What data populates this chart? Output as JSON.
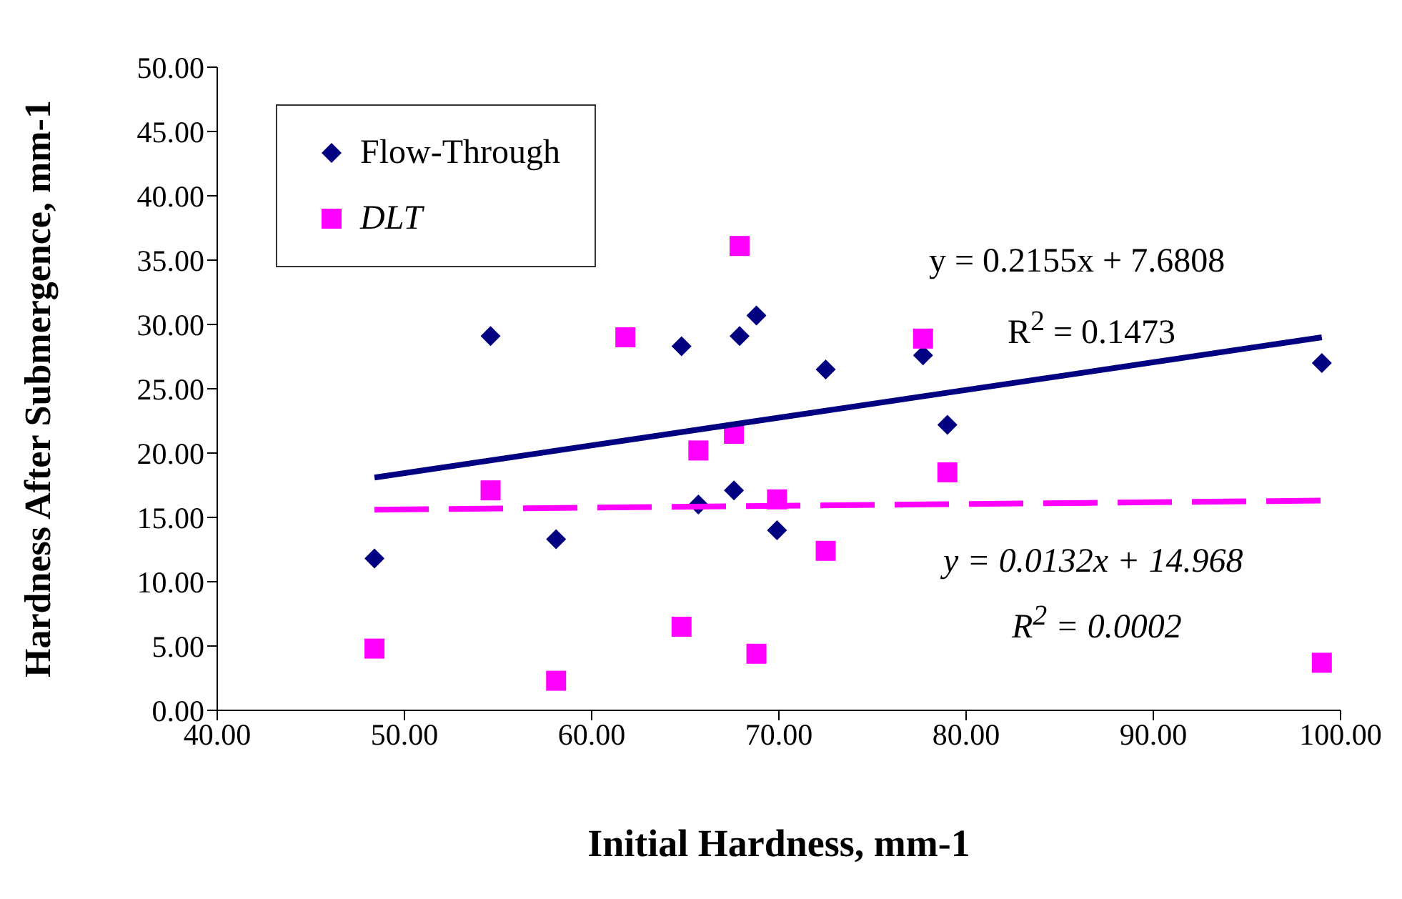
{
  "chart_data": {
    "type": "scatter",
    "xlabel": "Initial Hardness, mm-1",
    "ylabel": "Hardness After Submergence, mm-1",
    "xlim": [
      40,
      100
    ],
    "ylim": [
      0,
      50
    ],
    "xticks": [
      {
        "value": 40,
        "label": "40.00"
      },
      {
        "value": 50,
        "label": "50.00"
      },
      {
        "value": 60,
        "label": "60.00"
      },
      {
        "value": 70,
        "label": "70.00"
      },
      {
        "value": 80,
        "label": "80.00"
      },
      {
        "value": 90,
        "label": "90.00"
      },
      {
        "value": 100,
        "label": "100.00"
      }
    ],
    "yticks": [
      {
        "value": 0,
        "label": "0.00"
      },
      {
        "value": 5,
        "label": "5.00"
      },
      {
        "value": 10,
        "label": "10.00"
      },
      {
        "value": 15,
        "label": "15.00"
      },
      {
        "value": 20,
        "label": "20.00"
      },
      {
        "value": 25,
        "label": "25.00"
      },
      {
        "value": 30,
        "label": "30.00"
      },
      {
        "value": 35,
        "label": "35.00"
      },
      {
        "value": 40,
        "label": "40.00"
      },
      {
        "value": 45,
        "label": "45.00"
      },
      {
        "value": 50,
        "label": "50.00"
      }
    ],
    "grid": false,
    "legend": "top left",
    "series": [
      {
        "name": "Flow-Through",
        "color": "#000080",
        "marker": "diamond",
        "x": [
          48.4,
          54.6,
          58.1,
          64.8,
          65.7,
          67.6,
          67.9,
          68.8,
          69.9,
          72.5,
          77.7,
          79.0,
          99.0
        ],
        "values": [
          11.8,
          29.1,
          13.3,
          28.3,
          16.0,
          17.1,
          29.1,
          30.7,
          14.0,
          26.5,
          27.6,
          22.2,
          27.0
        ]
      },
      {
        "name": "DLT",
        "color": "#ff00ff",
        "marker": "square",
        "x": [
          48.4,
          54.6,
          58.1,
          61.8,
          64.8,
          65.7,
          67.6,
          67.9,
          68.8,
          69.9,
          72.5,
          77.7,
          79.0,
          99.0
        ],
        "values": [
          4.8,
          17.1,
          2.3,
          29.0,
          6.5,
          20.2,
          21.5,
          36.1,
          4.4,
          16.4,
          12.4,
          28.9,
          18.5,
          3.7
        ]
      },
      {
        "type": "line",
        "color": "#000080",
        "marker": "none",
        "line_style": "solid",
        "x": [
          48.4,
          99.0
        ],
        "values": [
          18.1,
          29.0
        ]
      },
      {
        "type": "line",
        "color": "#ff00ff",
        "marker": "none",
        "line_style": "dashed",
        "x": [
          48.4,
          99.0
        ],
        "values": [
          15.6,
          16.3
        ]
      }
    ],
    "annotations": [
      "y = 0.2155x + 7.6808",
      "R$^{2}$ = 0.1473",
      "y = 0.0132x + 14.968",
      "R$^{2}$ = 0.0002"
    ]
  }
}
